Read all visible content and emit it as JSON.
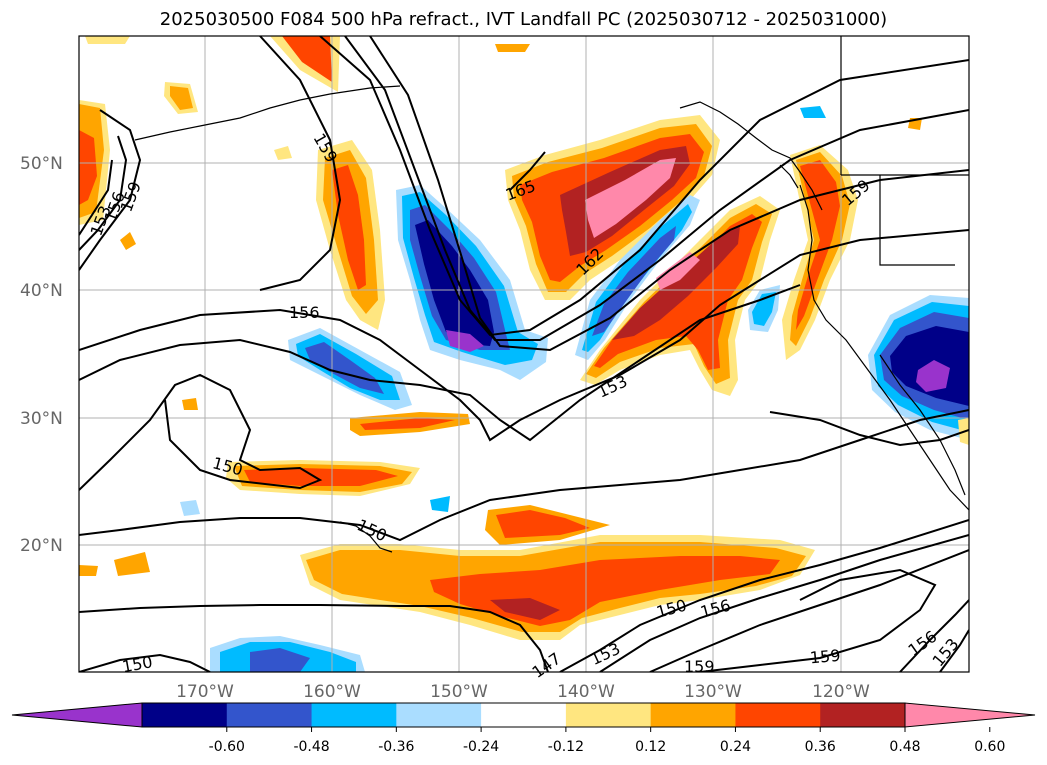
{
  "title": "2025030500 F084 500 hPa refract., IVT Landfall PC (2025030712 - 2025031000)",
  "lat_labels": [
    "50°N",
    "40°N",
    "30°N",
    "20°N"
  ],
  "lon_labels": [
    "170°W",
    "160°W",
    "150°W",
    "140°W",
    "130°W",
    "120°W"
  ],
  "contour_labels": [
    "159",
    "165",
    "162",
    "156",
    "153",
    "150",
    "150",
    "159",
    "153",
    "156",
    "159",
    "150",
    "147",
    "153",
    "150",
    "156",
    "159",
    "159",
    "156",
    "153"
  ],
  "colorbar": {
    "ticks": [
      "-0.60",
      "-0.48",
      "-0.36",
      "-0.24",
      "-0.12",
      "0.12",
      "0.24",
      "0.36",
      "0.48",
      "0.60"
    ],
    "colors": [
      "#9933cc",
      "#000088",
      "#3355cc",
      "#00bbff",
      "#aaddff",
      "#ffffff",
      "#ffe680",
      "#ffa500",
      "#ff4500",
      "#b22222",
      "#ff88aa"
    ]
  },
  "palette": {
    "purple": "#9933cc",
    "navy": "#000088",
    "blue": "#3355cc",
    "cyan": "#00bbff",
    "lightblue": "#aaddff",
    "yellow": "#ffe680",
    "orange": "#ffa500",
    "red": "#ff4500",
    "darkred": "#b22222",
    "pink": "#ff88aa"
  }
}
